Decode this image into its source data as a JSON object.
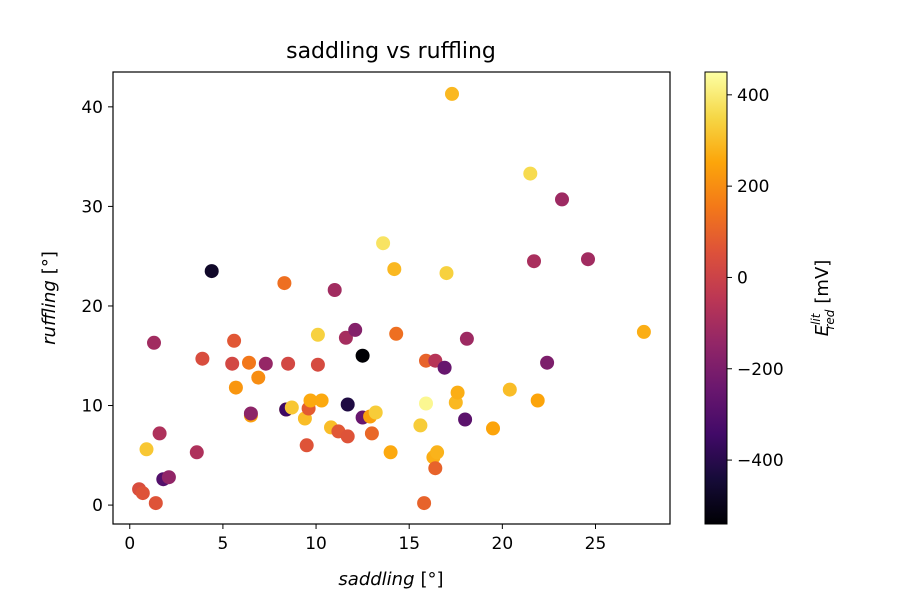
{
  "chart_data": {
    "type": "scatter",
    "title": "saddling vs ruffling",
    "xlabel": "saddling",
    "xlabel_unit": "[°]",
    "ylabel": "ruffling",
    "ylabel_unit": "[°]",
    "xlim": [
      -0.9,
      29
    ],
    "ylim": [
      -1.9,
      43.5
    ],
    "xticks": [
      0,
      5,
      10,
      15,
      20,
      25
    ],
    "yticks": [
      0,
      10,
      20,
      30,
      40
    ],
    "grid": false,
    "colorbar": {
      "label_main": "E",
      "label_sup": "lit",
      "label_sub": "red",
      "label_unit": "[mV]",
      "colormap": "inferno",
      "range": [
        -540,
        450
      ],
      "ticks": [
        400,
        200,
        0,
        -200,
        -400
      ],
      "tick_labels": [
        "400",
        "200",
        "0",
        "−200",
        "−400"
      ]
    },
    "points": [
      {
        "x": 0.5,
        "y": 1.6,
        "c": 40
      },
      {
        "x": 0.7,
        "y": 1.2,
        "c": 60
      },
      {
        "x": 0.9,
        "y": 5.6,
        "c": 320
      },
      {
        "x": 1.3,
        "y": 16.3,
        "c": -110
      },
      {
        "x": 1.4,
        "y": 0.2,
        "c": 60
      },
      {
        "x": 1.6,
        "y": 7.2,
        "c": -80
      },
      {
        "x": 1.8,
        "y": 2.6,
        "c": -300
      },
      {
        "x": 2.1,
        "y": 2.8,
        "c": -150
      },
      {
        "x": 3.6,
        "y": 5.3,
        "c": -80
      },
      {
        "x": 3.9,
        "y": 14.7,
        "c": 40
      },
      {
        "x": 4.4,
        "y": 23.5,
        "c": -470
      },
      {
        "x": 5.5,
        "y": 14.2,
        "c": 20
      },
      {
        "x": 5.6,
        "y": 16.5,
        "c": 70
      },
      {
        "x": 5.7,
        "y": 11.8,
        "c": 220
      },
      {
        "x": 6.4,
        "y": 14.3,
        "c": 150
      },
      {
        "x": 6.5,
        "y": 9.0,
        "c": 240
      },
      {
        "x": 6.5,
        "y": 9.2,
        "c": -160
      },
      {
        "x": 6.9,
        "y": 12.8,
        "c": 200
      },
      {
        "x": 7.3,
        "y": 14.2,
        "c": -140
      },
      {
        "x": 8.3,
        "y": 22.3,
        "c": 130
      },
      {
        "x": 8.4,
        "y": 9.6,
        "c": 240
      },
      {
        "x": 8.4,
        "y": 9.6,
        "c": -350
      },
      {
        "x": 8.5,
        "y": 14.2,
        "c": 20
      },
      {
        "x": 8.7,
        "y": 9.8,
        "c": 320
      },
      {
        "x": 9.4,
        "y": 8.7,
        "c": 300
      },
      {
        "x": 9.5,
        "y": 6.0,
        "c": 60
      },
      {
        "x": 9.6,
        "y": 9.7,
        "c": 80
      },
      {
        "x": 9.7,
        "y": 10.5,
        "c": 260
      },
      {
        "x": 10.1,
        "y": 17.1,
        "c": 340
      },
      {
        "x": 10.1,
        "y": 14.1,
        "c": 30
      },
      {
        "x": 10.3,
        "y": 10.5,
        "c": 260
      },
      {
        "x": 10.8,
        "y": 7.8,
        "c": 300
      },
      {
        "x": 11.0,
        "y": 21.6,
        "c": -110
      },
      {
        "x": 11.2,
        "y": 7.4,
        "c": 70
      },
      {
        "x": 11.6,
        "y": 16.8,
        "c": -100
      },
      {
        "x": 11.7,
        "y": 10.1,
        "c": -420
      },
      {
        "x": 11.7,
        "y": 6.9,
        "c": 60
      },
      {
        "x": 12.1,
        "y": 17.6,
        "c": -180
      },
      {
        "x": 12.5,
        "y": 15.0,
        "c": -540
      },
      {
        "x": 12.5,
        "y": 8.8,
        "c": -250
      },
      {
        "x": 12.9,
        "y": 8.9,
        "c": 240
      },
      {
        "x": 13.0,
        "y": 7.2,
        "c": 110
      },
      {
        "x": 13.2,
        "y": 9.3,
        "c": 330
      },
      {
        "x": 13.6,
        "y": 26.3,
        "c": 380
      },
      {
        "x": 14.0,
        "y": 5.3,
        "c": 260
      },
      {
        "x": 14.2,
        "y": 23.7,
        "c": 290
      },
      {
        "x": 14.3,
        "y": 17.2,
        "c": 130
      },
      {
        "x": 15.6,
        "y": 8.0,
        "c": 330
      },
      {
        "x": 15.8,
        "y": 0.2,
        "c": 100
      },
      {
        "x": 15.9,
        "y": 10.2,
        "c": 430
      },
      {
        "x": 15.9,
        "y": 14.5,
        "c": 100
      },
      {
        "x": 16.3,
        "y": 4.8,
        "c": 270
      },
      {
        "x": 16.4,
        "y": 3.7,
        "c": 100
      },
      {
        "x": 16.4,
        "y": 14.5,
        "c": -60
      },
      {
        "x": 16.5,
        "y": 5.3,
        "c": 280
      },
      {
        "x": 16.9,
        "y": 13.8,
        "c": -250
      },
      {
        "x": 17.0,
        "y": 23.3,
        "c": 340
      },
      {
        "x": 17.3,
        "y": 41.3,
        "c": 290
      },
      {
        "x": 17.5,
        "y": 10.3,
        "c": 290
      },
      {
        "x": 17.6,
        "y": 11.3,
        "c": 270
      },
      {
        "x": 18.0,
        "y": 8.6,
        "c": -280
      },
      {
        "x": 18.1,
        "y": 16.7,
        "c": -120
      },
      {
        "x": 19.5,
        "y": 7.7,
        "c": 250
      },
      {
        "x": 20.4,
        "y": 11.6,
        "c": 300
      },
      {
        "x": 21.5,
        "y": 33.3,
        "c": 360
      },
      {
        "x": 21.7,
        "y": 24.5,
        "c": -90
      },
      {
        "x": 21.9,
        "y": 10.5,
        "c": 250
      },
      {
        "x": 22.4,
        "y": 14.3,
        "c": -200
      },
      {
        "x": 23.2,
        "y": 30.7,
        "c": -120
      },
      {
        "x": 24.6,
        "y": 24.7,
        "c": -110
      },
      {
        "x": 27.6,
        "y": 17.4,
        "c": 270
      }
    ]
  }
}
